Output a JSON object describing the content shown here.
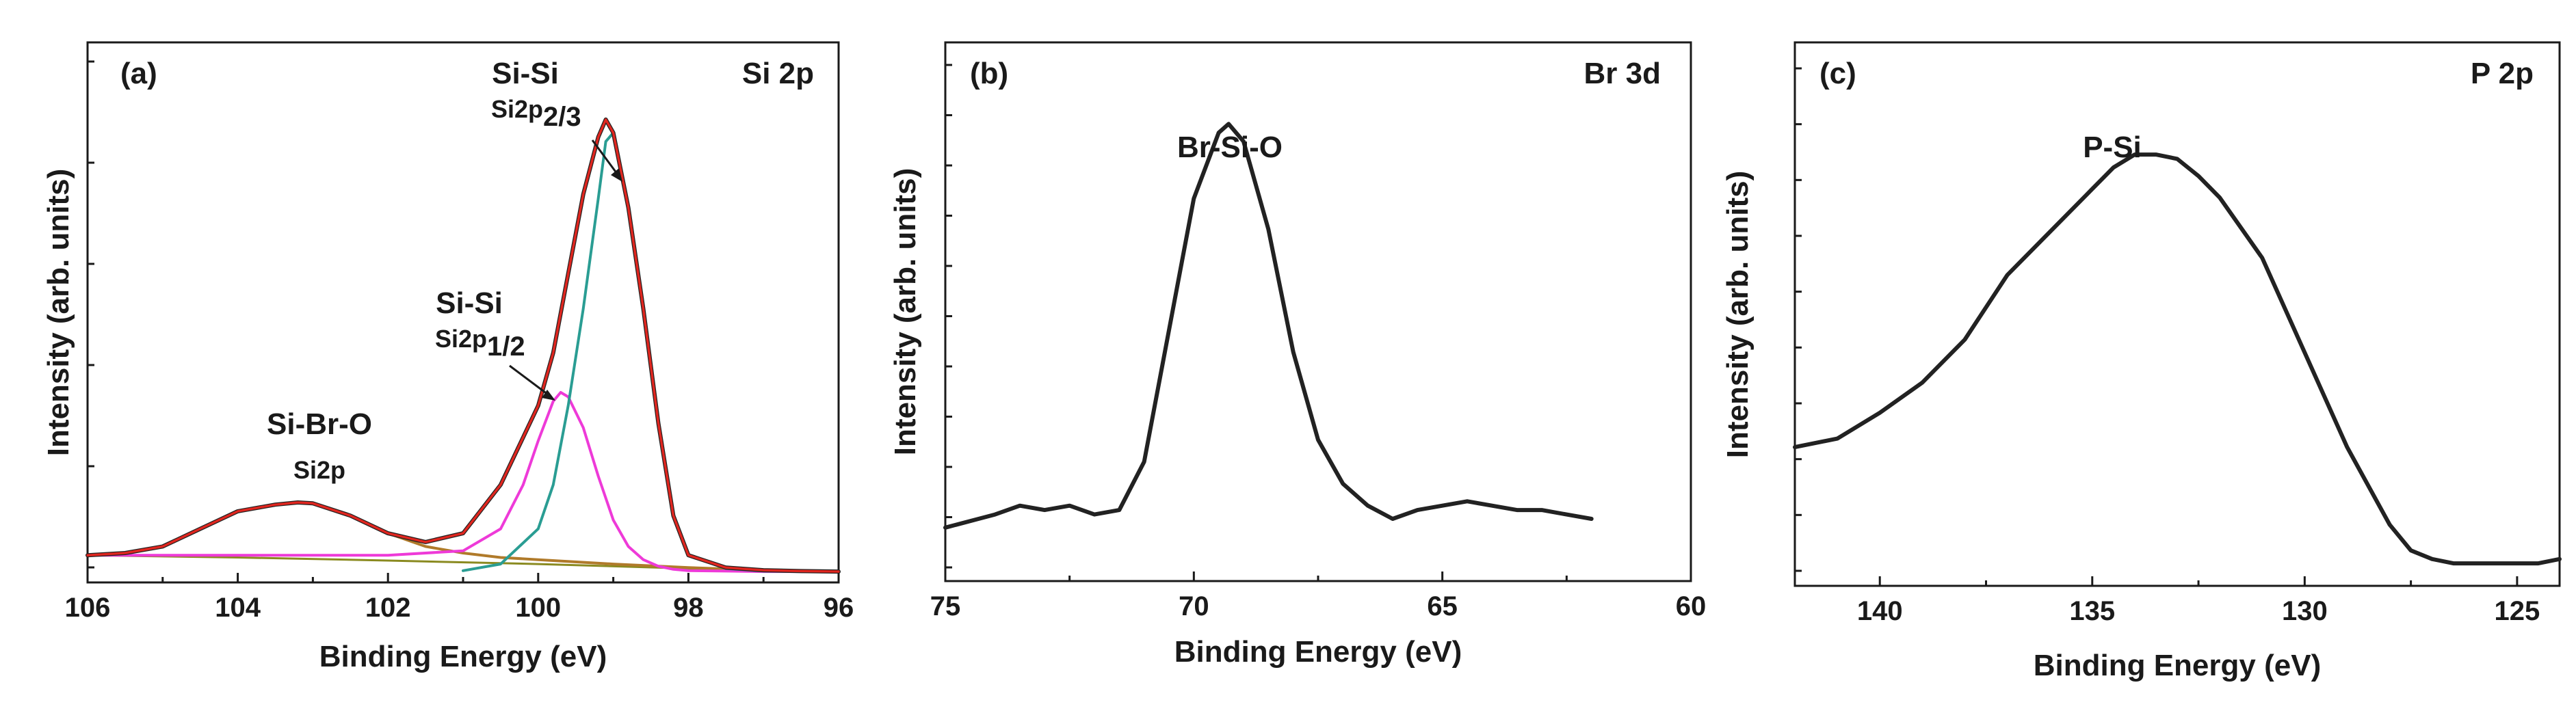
{
  "colors": {
    "background": "#ffffff",
    "axis": "#1a1a1a",
    "measured": "#222222",
    "envelope": "#e0261f",
    "si2p32": "#2a9d93",
    "si2p12": "#ee3ad8",
    "sibro": "#b07a2a",
    "baseline": "#8a8a20"
  },
  "chart_data": [
    {
      "type": "line",
      "panel_label": "(a)",
      "title": "Si 2p",
      "xlabel": "Binding Energy (eV)",
      "ylabel": "Intensity (arb. units)",
      "xlim": [
        106,
        96
      ],
      "x_reversed": true,
      "ylim": [
        0,
        1.05
      ],
      "xticks": [
        "106",
        "104",
        "102",
        "100",
        "98",
        "96"
      ],
      "grid": false,
      "legend": "none",
      "y_tick_labels_shown": false,
      "annotations": [
        {
          "text": "Si-Si",
          "sub_base": "Si2p",
          "sub": "2/3"
        },
        {
          "text": "Si-Si",
          "sub_base": "Si2p",
          "sub": "1/2"
        },
        {
          "text": "Si-Br-O",
          "sub_base": "Si2p",
          "sub": ""
        }
      ],
      "series": [
        {
          "role": "measured",
          "x": [
            106,
            105.5,
            105,
            104.5,
            104,
            103.5,
            103.2,
            103,
            102.5,
            102,
            101.5,
            101,
            100.5,
            100,
            99.8,
            99.6,
            99.4,
            99.2,
            99.1,
            99,
            98.8,
            98.6,
            98.4,
            98.2,
            98,
            97.5,
            97,
            96.5,
            96
          ],
          "y": [
            0.04,
            0.045,
            0.06,
            0.1,
            0.14,
            0.155,
            0.16,
            0.158,
            0.13,
            0.09,
            0.07,
            0.09,
            0.2,
            0.38,
            0.5,
            0.68,
            0.86,
            0.99,
            1.03,
            1.0,
            0.83,
            0.6,
            0.34,
            0.13,
            0.04,
            0.012,
            0.006,
            0.004,
            0.003
          ]
        },
        {
          "role": "fit-envelope",
          "x": [
            106,
            105.5,
            105,
            104.5,
            104,
            103.5,
            103.2,
            103,
            102.5,
            102,
            101.5,
            101,
            100.5,
            100,
            99.8,
            99.6,
            99.4,
            99.2,
            99.1,
            99,
            98.8,
            98.6,
            98.4,
            98.2,
            98,
            97.5,
            97,
            96.5,
            96
          ],
          "y": [
            0.04,
            0.045,
            0.06,
            0.1,
            0.14,
            0.155,
            0.16,
            0.158,
            0.13,
            0.09,
            0.07,
            0.09,
            0.2,
            0.38,
            0.5,
            0.68,
            0.86,
            0.99,
            1.03,
            1.0,
            0.83,
            0.6,
            0.34,
            0.13,
            0.04,
            0.012,
            0.006,
            0.004,
            0.003
          ]
        },
        {
          "role": "Si2p 2/3",
          "x": [
            101,
            100.5,
            100,
            99.8,
            99.6,
            99.4,
            99.2,
            99.1,
            99,
            98.8,
            98.6,
            98.4,
            98.2,
            98,
            97.5,
            97,
            96.5,
            96
          ],
          "y": [
            0.005,
            0.02,
            0.1,
            0.2,
            0.38,
            0.6,
            0.85,
            0.98,
            1.0,
            0.83,
            0.6,
            0.34,
            0.13,
            0.04,
            0.01,
            0.004,
            0.003,
            0.003
          ]
        },
        {
          "role": "Si2p 1/2",
          "x": [
            106,
            104,
            102,
            101,
            100.5,
            100.2,
            100,
            99.8,
            99.7,
            99.6,
            99.4,
            99.2,
            99,
            98.8,
            98.6,
            98.4,
            98.2,
            98,
            97.5,
            97,
            96.5,
            96
          ],
          "y": [
            0.04,
            0.04,
            0.04,
            0.05,
            0.1,
            0.2,
            0.3,
            0.39,
            0.41,
            0.4,
            0.33,
            0.22,
            0.12,
            0.06,
            0.03,
            0.015,
            0.008,
            0.005,
            0.004,
            0.003,
            0.003,
            0.003
          ]
        },
        {
          "role": "Si-Br-O",
          "x": [
            106,
            105.5,
            105,
            104.5,
            104,
            103.5,
            103.2,
            103,
            102.5,
            102,
            101.5,
            101,
            100.5,
            100,
            99,
            98,
            97,
            96
          ],
          "y": [
            0.04,
            0.045,
            0.06,
            0.1,
            0.14,
            0.155,
            0.16,
            0.158,
            0.13,
            0.09,
            0.06,
            0.045,
            0.035,
            0.03,
            0.02,
            0.012,
            0.006,
            0.003
          ]
        },
        {
          "role": "baseline",
          "x": [
            106,
            104,
            102,
            100,
            98,
            96
          ],
          "y": [
            0.04,
            0.035,
            0.028,
            0.02,
            0.01,
            0.003
          ]
        }
      ]
    },
    {
      "type": "line",
      "panel_label": "(b)",
      "title": "Br 3d",
      "xlabel": "Binding Energy (eV)",
      "ylabel": "Intensity (arb. units)",
      "xlim": [
        75,
        60
      ],
      "x_reversed": true,
      "ylim": [
        0,
        1.05
      ],
      "xticks": [
        "75",
        "70",
        "65",
        "60"
      ],
      "grid": false,
      "legend": "none",
      "y_tick_labels_shown": false,
      "annotations": [
        {
          "text": "Br-Si-O"
        }
      ],
      "series": [
        {
          "role": "measured",
          "x": [
            75,
            74,
            73.5,
            73,
            72.5,
            72,
            71.5,
            71,
            70.5,
            70,
            69.5,
            69.3,
            69,
            68.5,
            68,
            67.5,
            67,
            66.5,
            66,
            65.5,
            65,
            64.5,
            64,
            63.5,
            63,
            62.5,
            62
          ],
          "y": [
            0.1,
            0.13,
            0.15,
            0.14,
            0.15,
            0.13,
            0.14,
            0.25,
            0.55,
            0.85,
            1.0,
            1.02,
            0.98,
            0.78,
            0.5,
            0.3,
            0.2,
            0.15,
            0.12,
            0.14,
            0.15,
            0.16,
            0.15,
            0.14,
            0.14,
            0.13,
            0.12
          ]
        }
      ]
    },
    {
      "type": "line",
      "panel_label": "(c)",
      "title": "P 2p",
      "xlabel": "Binding Energy (eV)",
      "ylabel": "Intensity (arb. units)",
      "xlim": [
        142,
        124
      ],
      "x_reversed": true,
      "ylim": [
        0,
        1.05
      ],
      "xticks": [
        "140",
        "135",
        "130",
        "125"
      ],
      "grid": false,
      "legend": "none",
      "y_tick_labels_shown": false,
      "annotations": [
        {
          "text": "P-Si"
        }
      ],
      "series": [
        {
          "role": "measured",
          "x": [
            142,
            141,
            140,
            139,
            138,
            137,
            136,
            135,
            134.5,
            134,
            133.5,
            133,
            132.5,
            132,
            131,
            130,
            129,
            128,
            127.5,
            127,
            126.5,
            126,
            125,
            124.5,
            124
          ],
          "y": [
            0.3,
            0.32,
            0.38,
            0.45,
            0.55,
            0.7,
            0.8,
            0.9,
            0.95,
            0.98,
            0.98,
            0.97,
            0.93,
            0.88,
            0.74,
            0.52,
            0.3,
            0.12,
            0.06,
            0.04,
            0.03,
            0.03,
            0.03,
            0.03,
            0.04
          ]
        }
      ]
    }
  ]
}
